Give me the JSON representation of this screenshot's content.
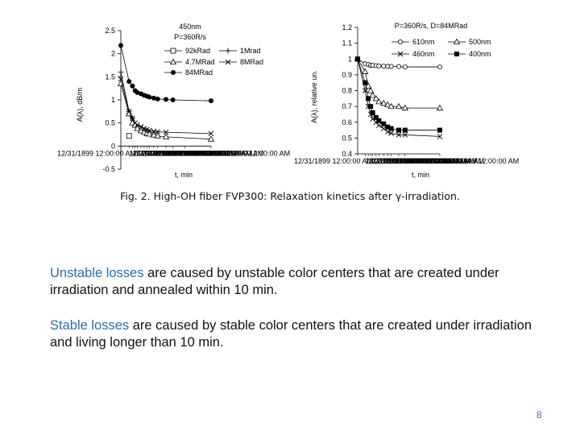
{
  "chart_data": [
    {
      "type": "line",
      "annotation_lines": [
        "450nm",
        "P=360R/s"
      ],
      "xlabel": "t, min",
      "ylabel": "A(λ), dB/m",
      "ylim": [
        -0.5,
        2.5
      ],
      "yticks": [
        "-0.5",
        "0",
        "0.5",
        "1",
        "1.5",
        "2",
        "2.5"
      ],
      "x_axis_tick_text": "12/31/1899 12:00:00 AM",
      "x": [
        0,
        0.5,
        1,
        1.5,
        2,
        3,
        4,
        5,
        6,
        8,
        10,
        15,
        20,
        30,
        60
      ],
      "series": [
        {
          "name": "92kRad",
          "marker": "square-open",
          "values": [
            null,
            0.22,
            null,
            null,
            null,
            null,
            null,
            null,
            null,
            null,
            null,
            null,
            null,
            null,
            null
          ]
        },
        {
          "name": "1Mrad",
          "marker": "plus",
          "values": [
            1.6,
            0.75,
            0.6,
            null,
            null,
            null,
            null,
            null,
            null,
            null,
            null,
            null,
            null,
            null,
            null
          ]
        },
        {
          "name": "4.7MRad",
          "marker": "triangle-open",
          "values": [
            1.35,
            0.7,
            0.5,
            0.45,
            0.38,
            0.33,
            0.3,
            0.27,
            0.26,
            0.24,
            0.22,
            0.2,
            null,
            null,
            0.15
          ]
        },
        {
          "name": "8MRad",
          "marker": "cross",
          "values": [
            1.45,
            0.75,
            0.6,
            0.5,
            0.46,
            0.42,
            0.38,
            0.36,
            0.34,
            0.32,
            0.31,
            0.3,
            null,
            null,
            0.27
          ]
        },
        {
          "name": "84MRad",
          "marker": "circle-filled",
          "values": [
            2.18,
            1.4,
            1.3,
            1.2,
            1.16,
            1.13,
            1.1,
            1.08,
            1.06,
            1.04,
            1.02,
            1.01,
            1.0,
            null,
            0.98
          ]
        }
      ]
    },
    {
      "type": "line",
      "title": "P=360R/s, D=84MRad",
      "xlabel": "t, min",
      "ylabel": "A(λ), relative un.",
      "ylim": [
        0.4,
        1.2
      ],
      "yticks": [
        "0.4",
        "0.5",
        "0.6",
        "0.7",
        "0.8",
        "0.9",
        "1",
        "1.1",
        "1.2"
      ],
      "x_axis_tick_text": "12/31/1899 12:00:00 AM",
      "x": [
        0,
        0.5,
        1,
        1.5,
        2,
        3,
        4,
        6,
        8,
        10,
        15,
        20,
        60
      ],
      "series": [
        {
          "name": "610nm",
          "marker": "circle-open",
          "values": [
            1.0,
            0.97,
            0.965,
            0.96,
            0.96,
            0.958,
            0.956,
            0.955,
            0.954,
            0.953,
            0.952,
            0.95,
            0.95
          ]
        },
        {
          "name": "500nm",
          "marker": "triangle-open",
          "values": [
            1.0,
            0.92,
            0.83,
            0.8,
            0.77,
            0.75,
            0.73,
            0.72,
            0.71,
            0.7,
            0.7,
            0.69,
            0.69
          ]
        },
        {
          "name": "460nm",
          "marker": "cross",
          "values": [
            1.0,
            0.8,
            0.7,
            0.65,
            0.62,
            0.6,
            0.58,
            0.56,
            0.54,
            0.53,
            0.52,
            0.52,
            0.51
          ]
        },
        {
          "name": "400nm",
          "marker": "square-filled",
          "values": [
            1.0,
            0.85,
            0.75,
            0.7,
            0.66,
            0.63,
            0.61,
            0.59,
            0.57,
            0.56,
            0.55,
            0.55,
            0.55
          ]
        }
      ]
    }
  ],
  "caption": "Fig. 2. High-OH fiber FVP300: Relaxation kinetics after γ-irradiation.",
  "paragraphs": [
    {
      "highlight": "Unstable losses",
      "rest": " are caused by unstable color centers that are created under irradiation and annealed within 10 min."
    },
    {
      "highlight": "Stable losses",
      "rest": " are caused by stable color centers that are created under irradiation and living longer than 10 min."
    }
  ],
  "page_number": "8",
  "colors": {
    "highlight": "#2e6da4",
    "page_number": "#4472c4",
    "plot_line": "#000000"
  }
}
